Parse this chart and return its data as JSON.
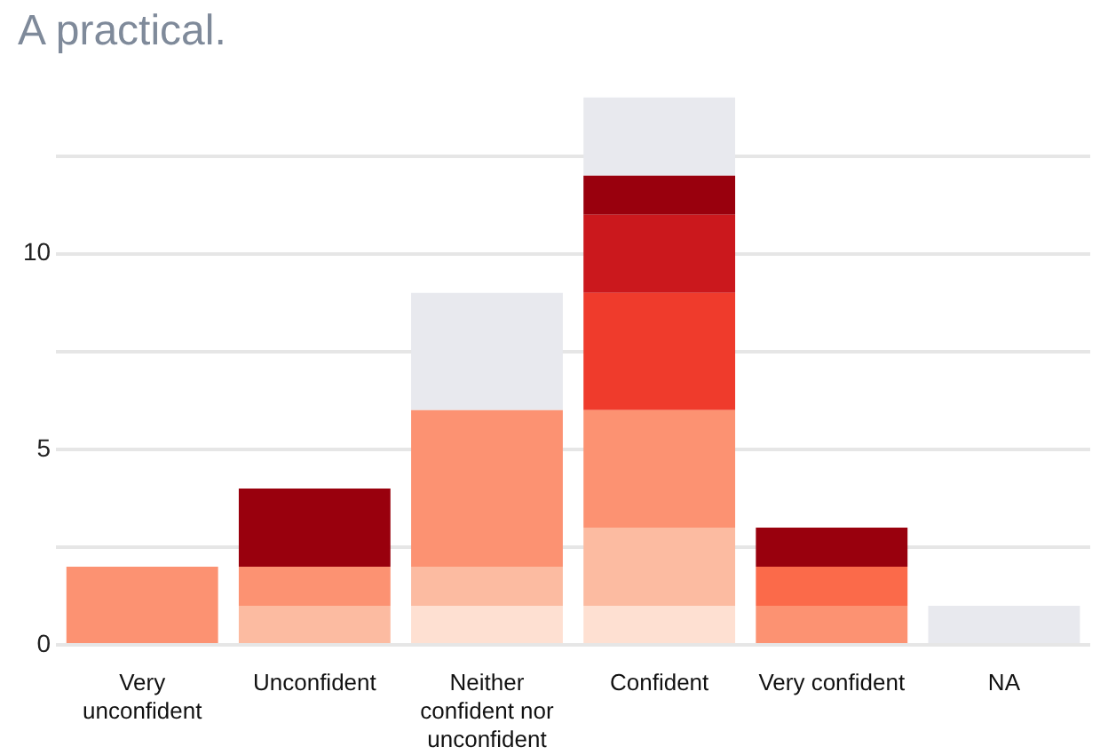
{
  "chart_data": {
    "type": "bar",
    "title": "A practical.",
    "stacked": true,
    "grid": "y",
    "categories": [
      "Very unconfident",
      "Unconfident",
      "Neither confident nor unconfident",
      "Confident",
      "Very confident",
      "NA"
    ],
    "series": [
      {
        "color": "#fee0d2",
        "values": [
          0,
          0,
          1,
          1,
          0,
          0
        ]
      },
      {
        "color": "#fcbba1",
        "values": [
          0,
          1,
          1,
          2,
          0,
          0
        ]
      },
      {
        "color": "#fc9272",
        "values": [
          2,
          1,
          4,
          3,
          1,
          0
        ]
      },
      {
        "color": "#fb6a4a",
        "values": [
          0,
          0,
          0,
          0,
          1,
          0
        ]
      },
      {
        "color": "#ef3b2c",
        "values": [
          0,
          0,
          0,
          3,
          0,
          0
        ]
      },
      {
        "color": "#cb181d",
        "values": [
          0,
          0,
          0,
          2,
          0,
          0
        ]
      },
      {
        "color": "#99000d",
        "values": [
          0,
          2,
          0,
          1,
          1,
          0
        ]
      },
      {
        "color": "#e8e9ee",
        "values": [
          0,
          0,
          3,
          2,
          0,
          1
        ]
      }
    ],
    "ylim": [
      0,
      14
    ],
    "yticks": [
      0,
      {
        "value": 2.5,
        "label": null
      },
      5,
      {
        "value": 7.5,
        "label": null
      },
      10,
      {
        "value": 12.5,
        "label": null
      }
    ]
  }
}
